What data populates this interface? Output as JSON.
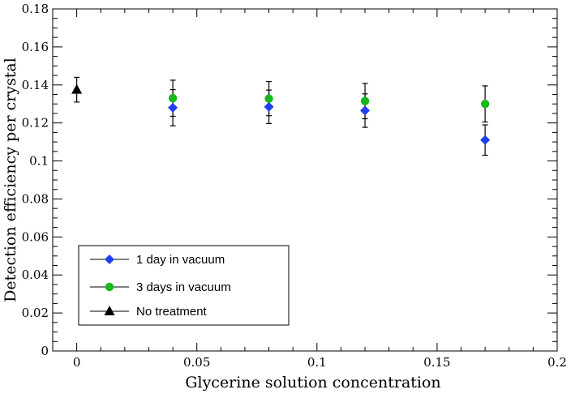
{
  "chart_data": {
    "type": "scatter",
    "title": "",
    "xlabel": "Glycerine solution concentration",
    "ylabel": "Detection efficiency per crystal",
    "xlim": [
      -0.01,
      0.2
    ],
    "ylim": [
      0,
      0.18
    ],
    "grid": false,
    "legend_position": "bottom-left",
    "x_ticks": [
      {
        "value": 0,
        "label": "0"
      },
      {
        "value": 0.05,
        "label": "0.05"
      },
      {
        "value": 0.1,
        "label": "0.1"
      },
      {
        "value": 0.15,
        "label": "0.15"
      },
      {
        "value": 0.2,
        "label": "0.2"
      }
    ],
    "y_ticks": [
      {
        "value": 0,
        "label": "0"
      },
      {
        "value": 0.02,
        "label": "0.02"
      },
      {
        "value": 0.04,
        "label": "0.04"
      },
      {
        "value": 0.06,
        "label": "0.06"
      },
      {
        "value": 0.08,
        "label": "0.08"
      },
      {
        "value": 0.1,
        "label": "0.1"
      },
      {
        "value": 0.12,
        "label": "0.12"
      },
      {
        "value": 0.14,
        "label": "0.14"
      },
      {
        "value": 0.16,
        "label": "0.16"
      },
      {
        "value": 0.18,
        "label": "0.18"
      }
    ],
    "series": [
      {
        "name": "1 day in vacuum",
        "marker": "diamond",
        "color": "#1f3ff0",
        "points": [
          {
            "x": 0.04,
            "y": 0.128,
            "err": 0.0095
          },
          {
            "x": 0.08,
            "y": 0.1285,
            "err": 0.0088
          },
          {
            "x": 0.12,
            "y": 0.1265,
            "err": 0.0088
          },
          {
            "x": 0.17,
            "y": 0.111,
            "err": 0.008
          }
        ]
      },
      {
        "name": "3 days in vacuum",
        "marker": "circle",
        "color": "#16b81a",
        "points": [
          {
            "x": 0.04,
            "y": 0.133,
            "err": 0.0095
          },
          {
            "x": 0.08,
            "y": 0.1328,
            "err": 0.009
          },
          {
            "x": 0.12,
            "y": 0.1315,
            "err": 0.0093
          },
          {
            "x": 0.17,
            "y": 0.13,
            "err": 0.0095
          }
        ]
      },
      {
        "name": "No treatment",
        "marker": "triangle",
        "color": "#000000",
        "points": [
          {
            "x": 0,
            "y": 0.1375,
            "err": 0.0065
          }
        ]
      }
    ]
  }
}
